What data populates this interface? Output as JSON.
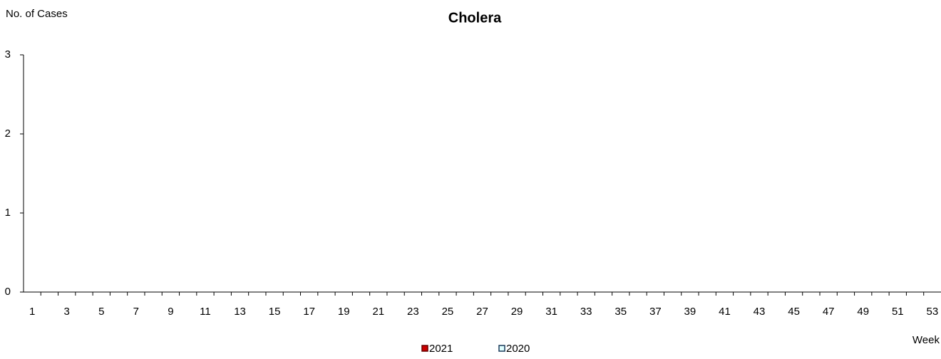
{
  "chart_data": {
    "type": "bar",
    "title": "Cholera",
    "y_label": "No. of Cases",
    "x_label": "Week",
    "categories": [
      1,
      null,
      3,
      null,
      5,
      null,
      7,
      null,
      9,
      null,
      11,
      null,
      13,
      null,
      15,
      null,
      17,
      null,
      19,
      null,
      21,
      null,
      23,
      null,
      25,
      null,
      27,
      null,
      29,
      null,
      31,
      null,
      33,
      null,
      35,
      null,
      37,
      null,
      39,
      null,
      41,
      null,
      43,
      null,
      45,
      null,
      47,
      null,
      49,
      null,
      51,
      null,
      53
    ],
    "series": [
      {
        "name": "2021",
        "color": "#cc0000",
        "edge": "#660000",
        "values": [
          0,
          0,
          0,
          0,
          0,
          0,
          0,
          0,
          0,
          0,
          0,
          0,
          0,
          0,
          0,
          0,
          0,
          0,
          0,
          0,
          0,
          0,
          0,
          0,
          0,
          0,
          0,
          0,
          0,
          0,
          0,
          0,
          0,
          0,
          0,
          0,
          0,
          0,
          0,
          0,
          0,
          0,
          0,
          0,
          0,
          0,
          0,
          0,
          0,
          0,
          0,
          0,
          0
        ]
      },
      {
        "name": "2020",
        "color": "#e0ffff",
        "edge": "#1a3a5a",
        "values": [
          0,
          0,
          0,
          0,
          0,
          0,
          0,
          0,
          0,
          0,
          0,
          0,
          0,
          0,
          0,
          0,
          0,
          0,
          0,
          0,
          0,
          0,
          0,
          0,
          0,
          0,
          0,
          0,
          0,
          0,
          0,
          0,
          0,
          0,
          0,
          0,
          0,
          0,
          0,
          0,
          0,
          0,
          0,
          0,
          0,
          0,
          0,
          0,
          0,
          0,
          0,
          0,
          0
        ]
      }
    ],
    "ylim": [
      0,
      3
    ],
    "yticks": [
      0,
      1,
      2,
      3
    ],
    "grid": false,
    "legend": "bottom"
  }
}
